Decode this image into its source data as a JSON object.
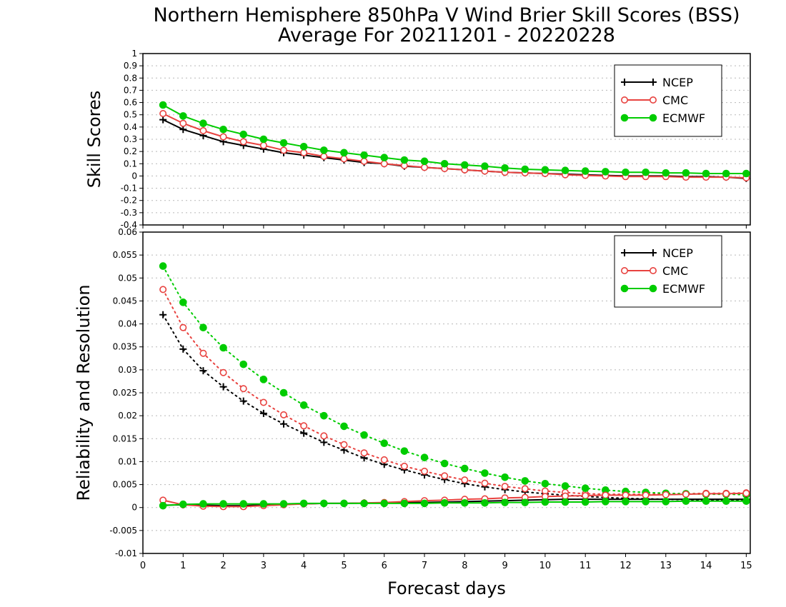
{
  "title_line1": "Northern Hemisphere 850hPa V Wind Brier Skill Scores (BSS)",
  "title_line2": "Average For 20211201 - 20220228",
  "xlabel": "Forecast days",
  "chart_data": [
    {
      "type": "line",
      "ylabel": "Skill Scores",
      "xlim": [
        0,
        15.1
      ],
      "ylim": [
        -0.4,
        1
      ],
      "grid": true,
      "legend_position": "top-right",
      "x_ticks": [
        "0",
        "1",
        "2",
        "3",
        "4",
        "5",
        "6",
        "7",
        "8",
        "9",
        "10",
        "11",
        "12",
        "13",
        "14",
        "15"
      ],
      "y_ticks": [
        "-0.4",
        "-0.3",
        "-0.2",
        "-0.1",
        "0",
        "0.1",
        "0.2",
        "0.3",
        "0.4",
        "0.5",
        "0.6",
        "0.7",
        "0.8",
        "0.9",
        "1"
      ],
      "x": [
        0.5,
        1,
        1.5,
        2,
        2.5,
        3,
        3.5,
        4,
        4.5,
        5,
        5.5,
        6,
        6.5,
        7,
        7.5,
        8,
        8.5,
        9,
        9.5,
        10,
        10.5,
        11,
        11.5,
        12,
        12.5,
        13,
        13.5,
        14,
        14.5,
        15
      ],
      "series": [
        {
          "name": "NCEP",
          "color": "#000000",
          "marker": "plus",
          "style": "solid",
          "values": [
            0.46,
            0.38,
            0.33,
            0.28,
            0.25,
            0.22,
            0.19,
            0.17,
            0.15,
            0.13,
            0.11,
            0.1,
            0.08,
            0.07,
            0.06,
            0.05,
            0.04,
            0.03,
            0.025,
            0.02,
            0.015,
            0.01,
            0.005,
            0.0,
            0.0,
            0.0,
            -0.005,
            -0.005,
            -0.01,
            -0.02
          ]
        },
        {
          "name": "CMC",
          "color": "#e8423f",
          "marker": "open-circle",
          "style": "solid",
          "values": [
            0.51,
            0.43,
            0.37,
            0.32,
            0.28,
            0.25,
            0.21,
            0.19,
            0.16,
            0.14,
            0.12,
            0.1,
            0.085,
            0.07,
            0.06,
            0.05,
            0.04,
            0.03,
            0.025,
            0.02,
            0.01,
            0.005,
            0.0,
            -0.005,
            -0.005,
            -0.005,
            -0.01,
            -0.01,
            -0.01,
            -0.015
          ]
        },
        {
          "name": "ECMWF",
          "color": "#00cc00",
          "marker": "filled-circle",
          "style": "solid",
          "values": [
            0.58,
            0.49,
            0.43,
            0.38,
            0.34,
            0.3,
            0.27,
            0.24,
            0.21,
            0.19,
            0.17,
            0.15,
            0.13,
            0.12,
            0.1,
            0.09,
            0.08,
            0.065,
            0.055,
            0.05,
            0.045,
            0.04,
            0.035,
            0.03,
            0.03,
            0.025,
            0.025,
            0.02,
            0.02,
            0.02
          ]
        }
      ]
    },
    {
      "type": "line",
      "ylabel": "Reliability and Resolution",
      "xlim": [
        0,
        15.1
      ],
      "ylim": [
        -0.01,
        0.06
      ],
      "grid": true,
      "legend_position": "top-right",
      "x_ticks": [
        "0",
        "1",
        "2",
        "3",
        "4",
        "5",
        "6",
        "7",
        "8",
        "9",
        "10",
        "11",
        "12",
        "13",
        "14",
        "15"
      ],
      "y_ticks": [
        "-0.01",
        "-0.005",
        "0",
        "0.005",
        "0.01",
        "0.015",
        "0.02",
        "0.025",
        "0.03",
        "0.035",
        "0.04",
        "0.045",
        "0.05",
        "0.055",
        "0.06"
      ],
      "x": [
        0.5,
        1,
        1.5,
        2,
        2.5,
        3,
        3.5,
        4,
        4.5,
        5,
        5.5,
        6,
        6.5,
        7,
        7.5,
        8,
        8.5,
        9,
        9.5,
        10,
        10.5,
        11,
        11.5,
        12,
        12.5,
        13,
        13.5,
        14,
        14.5,
        15
      ],
      "series": [
        {
          "name": "NCEP",
          "color": "#000000",
          "marker": "plus",
          "style": "dotted",
          "component": "resolution",
          "values": [
            0.042,
            0.0345,
            0.0298,
            0.0263,
            0.0232,
            0.0205,
            0.0182,
            0.0162,
            0.0142,
            0.0125,
            0.0108,
            0.0094,
            0.0082,
            0.0071,
            0.0061,
            0.0052,
            0.0045,
            0.0039,
            0.0034,
            0.003,
            0.0027,
            0.0024,
            0.0022,
            0.002,
            0.0019,
            0.0018,
            0.0017,
            0.0016,
            0.0016,
            0.0015
          ]
        },
        {
          "name": "CMC",
          "color": "#e8423f",
          "marker": "open-circle",
          "style": "dotted",
          "component": "resolution",
          "values": [
            0.0475,
            0.0392,
            0.0336,
            0.0294,
            0.0259,
            0.0229,
            0.0202,
            0.0178,
            0.0156,
            0.0137,
            0.0119,
            0.0104,
            0.009,
            0.0079,
            0.0069,
            0.006,
            0.0053,
            0.0046,
            0.0041,
            0.0036,
            0.0033,
            0.003,
            0.0029,
            0.0029,
            0.0029,
            0.003,
            0.003,
            0.0031,
            0.0031,
            0.0032
          ]
        },
        {
          "name": "ECMWF",
          "color": "#00cc00",
          "marker": "filled-circle",
          "style": "dotted",
          "component": "resolution",
          "values": [
            0.0526,
            0.0447,
            0.0392,
            0.0348,
            0.0312,
            0.0279,
            0.025,
            0.0223,
            0.02,
            0.0177,
            0.0158,
            0.014,
            0.0123,
            0.0109,
            0.0096,
            0.0085,
            0.0075,
            0.0066,
            0.0058,
            0.0052,
            0.0047,
            0.0042,
            0.0038,
            0.0035,
            0.0033,
            0.0031,
            0.003,
            0.0029,
            0.0029,
            0.0028
          ]
        },
        {
          "name": "NCEP",
          "color": "#000000",
          "marker": "plus",
          "style": "solid",
          "component": "reliability",
          "values": [
            0.0005,
            0.0006,
            0.0005,
            0.0004,
            0.0004,
            0.0006,
            0.0007,
            0.0008,
            0.0009,
            0.0009,
            0.001,
            0.001,
            0.0011,
            0.0011,
            0.0012,
            0.0013,
            0.0014,
            0.0015,
            0.0016,
            0.0017,
            0.0018,
            0.0018,
            0.0018,
            0.0018,
            0.0018,
            0.0018,
            0.0018,
            0.0018,
            0.0018,
            0.0018
          ]
        },
        {
          "name": "CMC",
          "color": "#e8423f",
          "marker": "open-circle",
          "style": "solid",
          "component": "reliability",
          "values": [
            0.0016,
            0.0006,
            0.0003,
            0.0002,
            0.0002,
            0.0004,
            0.0006,
            0.0008,
            0.0009,
            0.0009,
            0.001,
            0.0011,
            0.0013,
            0.0015,
            0.0016,
            0.0018,
            0.0019,
            0.0021,
            0.0022,
            0.0024,
            0.0025,
            0.0026,
            0.0027,
            0.0027,
            0.0027,
            0.0028,
            0.0029,
            0.003,
            0.003,
            0.0031
          ]
        },
        {
          "name": "ECMWF",
          "color": "#00cc00",
          "marker": "filled-circle",
          "style": "solid",
          "component": "reliability",
          "values": [
            0.0004,
            0.0007,
            0.0008,
            0.0008,
            0.0008,
            0.0008,
            0.0008,
            0.0009,
            0.0009,
            0.0009,
            0.0009,
            0.0009,
            0.0009,
            0.0009,
            0.001,
            0.001,
            0.001,
            0.0011,
            0.0011,
            0.0012,
            0.0012,
            0.0012,
            0.0013,
            0.0013,
            0.0013,
            0.0013,
            0.0014,
            0.0014,
            0.0014,
            0.0014
          ]
        }
      ]
    }
  ]
}
